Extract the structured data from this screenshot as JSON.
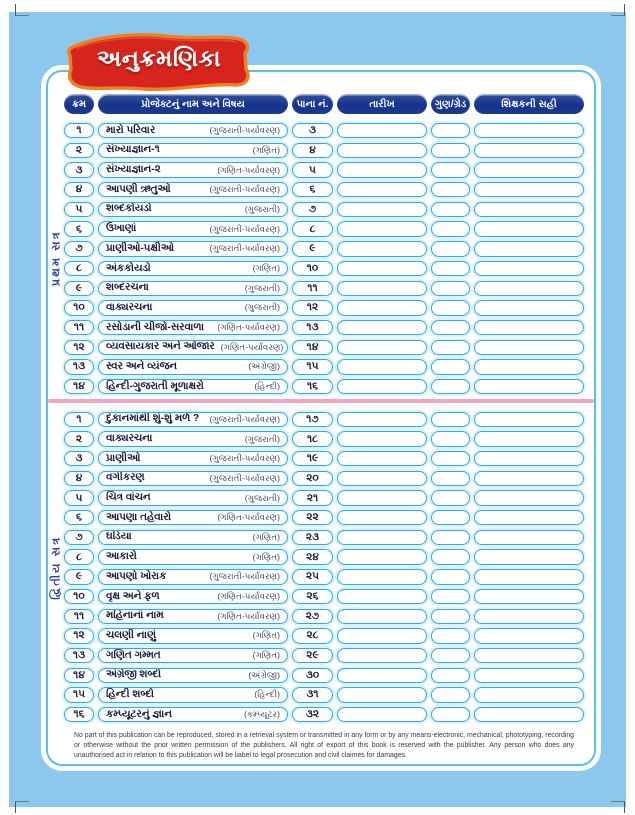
{
  "banner": {
    "title": "અનુક્રમણિકા"
  },
  "table": {
    "headers": {
      "serial": "ક્રમ",
      "project": "પ્રોજેક્ટનું નામ અને વિષય",
      "page": "પાના નં.",
      "date": "તારીખ",
      "grade": "ગુણ/ગ્રેડ",
      "sign": "શિક્ષકની સહી"
    },
    "sections": [
      {
        "label": "પ્રથમ સત્ર",
        "rows": [
          {
            "serial": "૧",
            "name": "મારો પરિવાર",
            "subject": "(ગુજરાતી-પર્યાવરણ)",
            "page": "૩"
          },
          {
            "serial": "૨",
            "name": "સંખ્યાજ્ઞાન-૧",
            "subject": "(ગણિત)",
            "page": "૪"
          },
          {
            "serial": "૩",
            "name": "સંખ્યાજ્ઞાન-૨",
            "subject": "(ગણિત-પર્યાવરણ)",
            "page": "૫"
          },
          {
            "serial": "૪",
            "name": "આપણી ઋતુઓ",
            "subject": "(ગુજરાતી-પર્યાવરણ)",
            "page": "૬"
          },
          {
            "serial": "૫",
            "name": "શબ્દકોયડો",
            "subject": "(ગુજરાતી)",
            "page": "૭"
          },
          {
            "serial": "૬",
            "name": "ઉખાણાં",
            "subject": "(ગુજરાતી-પર્યાવરણ)",
            "page": "૮"
          },
          {
            "serial": "૭",
            "name": "પ્રાણીઓ-પક્ષીઓ",
            "subject": "(ગુજરાતી-પર્યાવરણ)",
            "page": "૯"
          },
          {
            "serial": "૮",
            "name": "અંકકોયડો",
            "subject": "(ગણિત)",
            "page": "૧૦"
          },
          {
            "serial": "૯",
            "name": "શબ્દરચના",
            "subject": "(ગુજરાતી)",
            "page": "૧૧"
          },
          {
            "serial": "૧૦",
            "name": "વાક્યરચના",
            "subject": "(ગુજરાતી)",
            "page": "૧૨"
          },
          {
            "serial": "૧૧",
            "name": "રસોડાની ચીજો-સરવાળા",
            "subject": "(ગણિત-પર્યાવરણ)",
            "page": "૧૩"
          },
          {
            "serial": "૧૨",
            "name": "વ્યવસાયકાર અને ઓજાર",
            "subject": "(ગણિત-પર્યાવરણ)",
            "page": "૧૪"
          },
          {
            "serial": "૧૩",
            "name": "સ્વર અને વ્યંજન",
            "subject": "(અંગ્રેજી)",
            "page": "૧૫"
          },
          {
            "serial": "૧૪",
            "name": "હિન્દી-ગુજરાતી મૂળાક્ષરો",
            "subject": "(હિન્દી)",
            "page": "૧૬"
          }
        ]
      },
      {
        "label": "દ્વિતીય સત્ર",
        "rows": [
          {
            "serial": "૧",
            "name": "દુકાનમાંથી શું-શું મળે ?",
            "subject": "(ગુજરાતી-પર્યાવરણ)",
            "page": "૧૭"
          },
          {
            "serial": "૨",
            "name": "વાક્યરચના",
            "subject": "(ગુજરાતી)",
            "page": "૧૮"
          },
          {
            "serial": "૩",
            "name": "પ્રાણીઓ",
            "subject": "(ગુજરાતી-પર્યાવરણ)",
            "page": "૧૯"
          },
          {
            "serial": "૪",
            "name": "વર્ગીકરણ",
            "subject": "(ગુજરાતી-પર્યાવરણ)",
            "page": "૨૦"
          },
          {
            "serial": "૫",
            "name": "ચિત્ર વાંચન",
            "subject": "(ગુજરાતી)",
            "page": "૨૧"
          },
          {
            "serial": "૬",
            "name": "આપણા તહેવારો",
            "subject": "(ગણિત-પર્યાવરણ)",
            "page": "૨૨"
          },
          {
            "serial": "૭",
            "name": "ઘડિયા",
            "subject": "(ગણિત)",
            "page": "૨૩"
          },
          {
            "serial": "૮",
            "name": "આકારો",
            "subject": "(ગણિત)",
            "page": "૨૪"
          },
          {
            "serial": "૯",
            "name": "આપણો ખોરાક",
            "subject": "(ગુજરાતી-પર્યાવરણ)",
            "page": "૨૫"
          },
          {
            "serial": "૧૦",
            "name": "વૃક્ષ અને ફળ",
            "subject": "(ગણિત-પર્યાવરણ)",
            "page": "૨૬"
          },
          {
            "serial": "૧૧",
            "name": "મહિનાનાં નામ",
            "subject": "(ગણિત-પર્યાવરણ)",
            "page": "૨૭"
          },
          {
            "serial": "૧૨",
            "name": "ચલણી નાણું",
            "subject": "(ગણિત)",
            "page": "૨૮"
          },
          {
            "serial": "૧૩",
            "name": "ગણિત ગમ્મત",
            "subject": "(ગણિત)",
            "page": "૨૯"
          },
          {
            "serial": "૧૪",
            "name": "અંગ્રેજી શબ્દો",
            "subject": "(અંગ્રેજી)",
            "page": "૩૦"
          },
          {
            "serial": "૧૫",
            "name": "હિન્દી શબ્દો",
            "subject": "(હિન્દી)",
            "page": "૩૧"
          },
          {
            "serial": "૧૬",
            "name": "કમ્પ્યૂટરનું જ્ઞાન",
            "subject": "(કમ્પ્યૂટર)",
            "page": "૩૨"
          }
        ]
      }
    ]
  },
  "footer": {
    "text": "No part of this publication can be reproduced, stored in a retrieval system or transmitted in any form or by any means-electronic, mechanical, phototyping, recording or otherwise without the prior written permission of the publishers. All right of export of this book is reserved with the publisher. Any person who does any unauthorised act in relation to this publication will be liabel to legal prosecution and civil claimes for damages."
  },
  "colors": {
    "background": "#8cc7ee",
    "panel_border": "#54c2ec",
    "pill_border": "#29aee3",
    "header_navy": "#1b3a92",
    "banner_red": "#d6251c",
    "banner_orange": "#f0801e",
    "divider_pink": "#f3a6c4",
    "text_navy": "#17183c"
  }
}
